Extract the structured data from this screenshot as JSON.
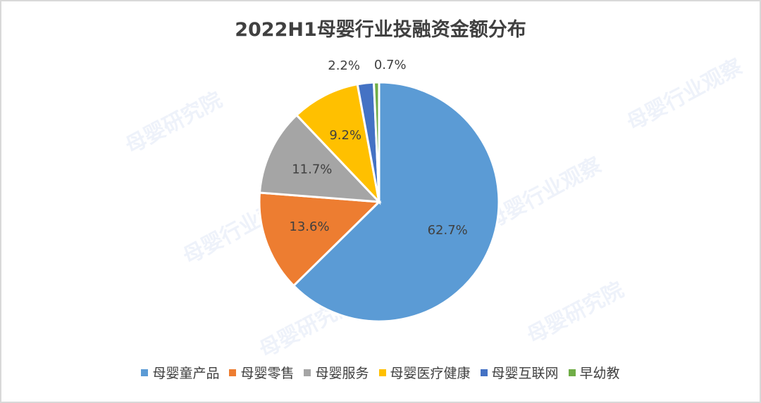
{
  "chart_data": {
    "type": "pie",
    "title": "2022H1母婴行业投融资金额分布",
    "categories": [
      "母婴童产品",
      "母婴零售",
      "母婴服务",
      "母婴医疗健康",
      "母婴互联网",
      "早幼教"
    ],
    "values": [
      62.7,
      13.6,
      11.7,
      9.2,
      2.2,
      0.7
    ],
    "labels": [
      "62.7%",
      "13.6%",
      "11.7%",
      "9.2%",
      "2.2%",
      "0.7%"
    ],
    "colors": [
      "#5b9bd5",
      "#ed7d31",
      "#a5a5a5",
      "#ffc000",
      "#4472c4",
      "#70ad47"
    ],
    "legend_position": "bottom"
  },
  "watermarks": [
    "母婴研究院",
    "母婴行业观察",
    "母婴行业观察",
    "母婴研究院",
    "母婴研究院",
    "母婴行业观察"
  ]
}
